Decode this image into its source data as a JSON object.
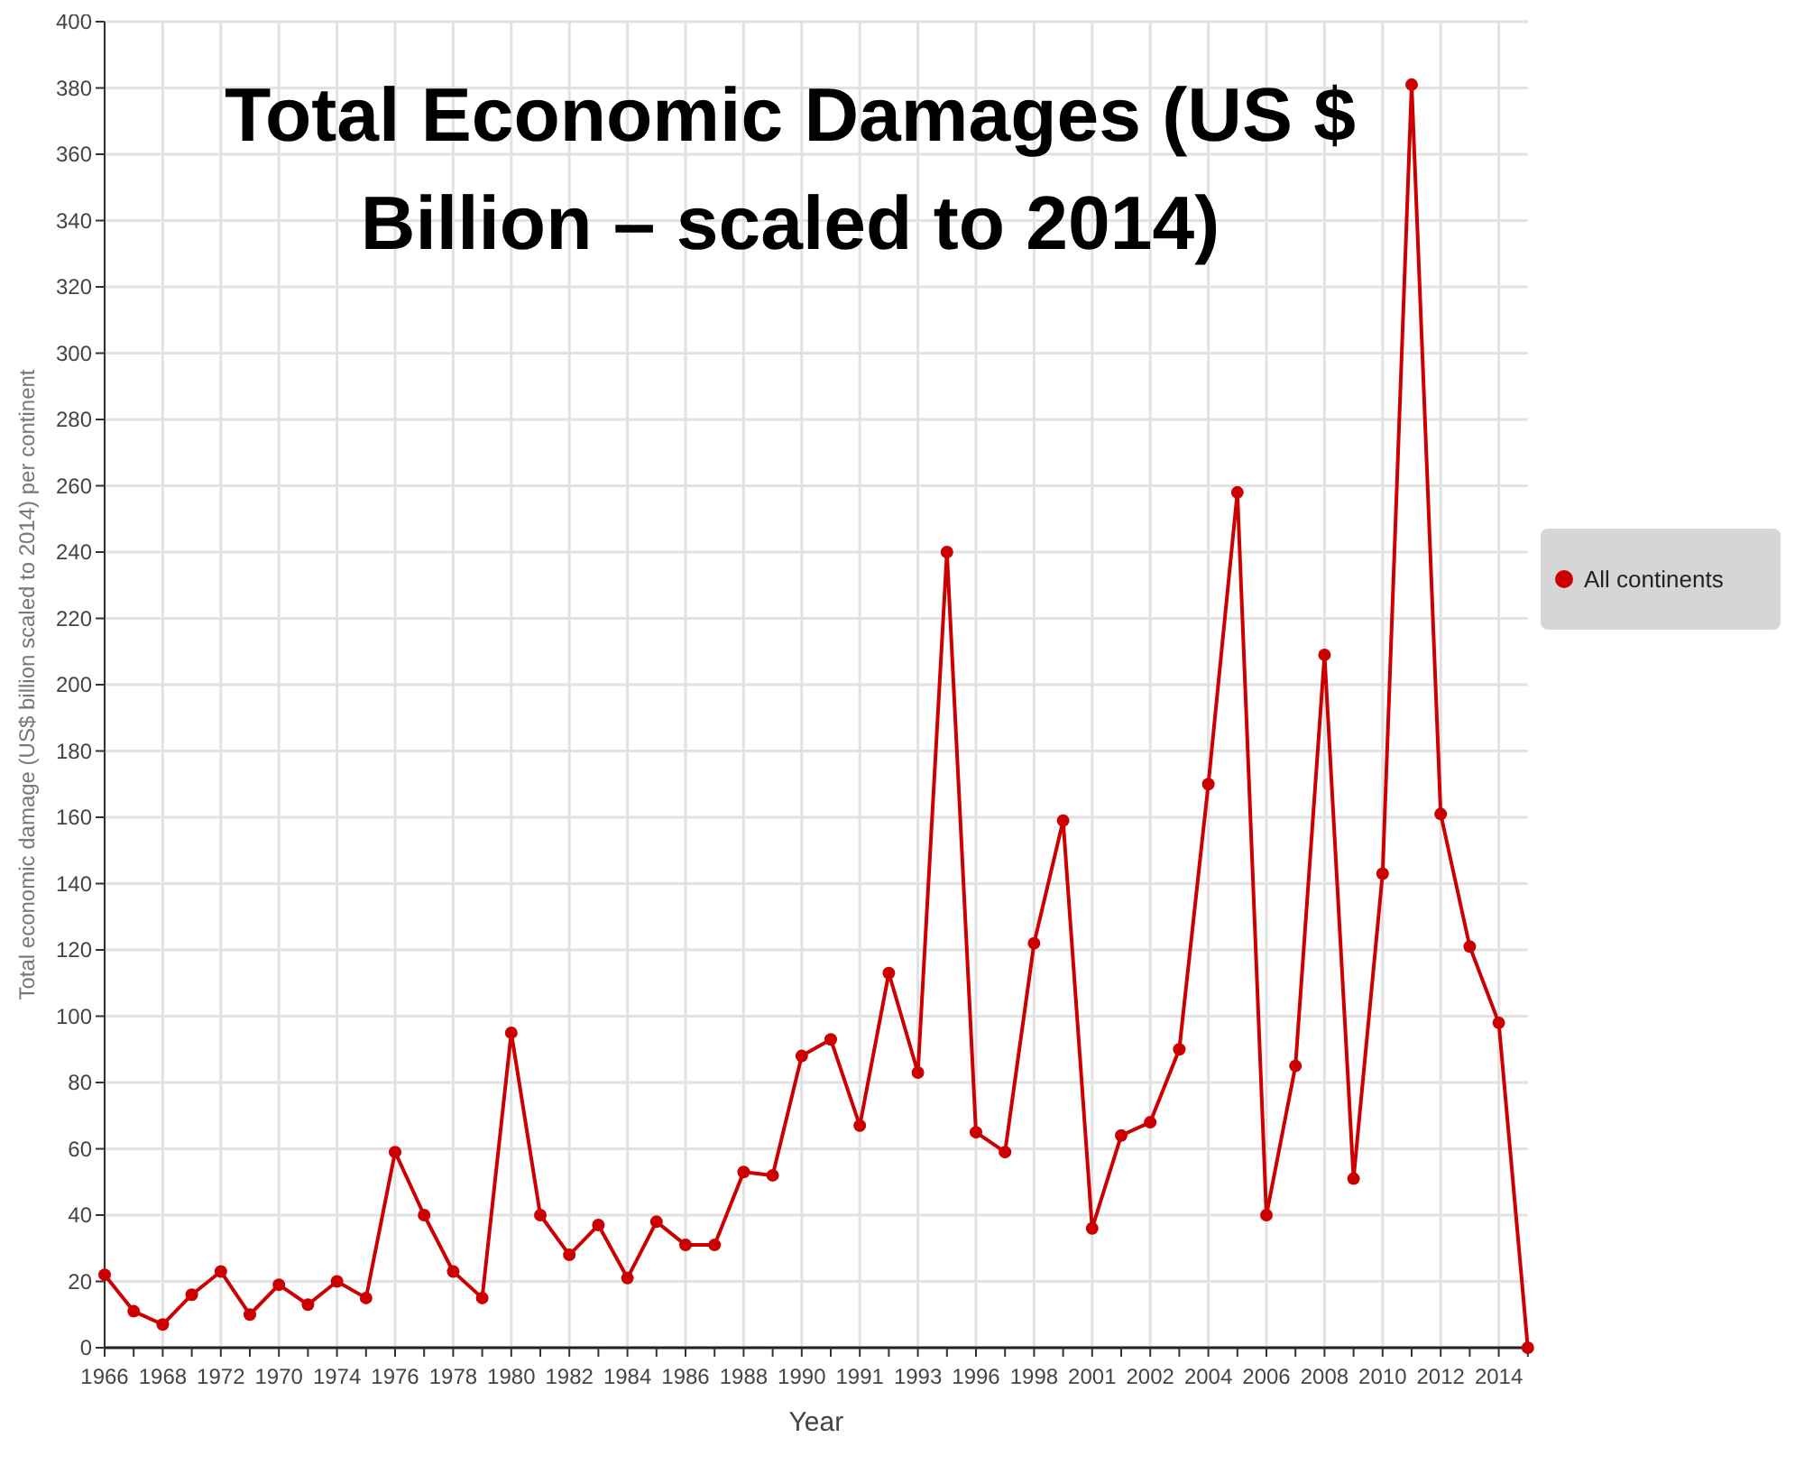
{
  "chart_data": {
    "type": "line",
    "title": "Total Economic Damages (US $ Billion – scaled to 2014)",
    "xlabel": "Year",
    "ylabel": "Total economic damage (US$ billion scaled to 2014) per continent",
    "categories": [
      "1966",
      null,
      "1968",
      null,
      "1972",
      null,
      "1970",
      null,
      "1974",
      null,
      "1976",
      null,
      "1978",
      null,
      "1980",
      null,
      "1982",
      null,
      "1984",
      null,
      "1986",
      null,
      "1988",
      null,
      "1990",
      null,
      "1991",
      null,
      "1993",
      null,
      "1996",
      null,
      "1998",
      null,
      "2001",
      null,
      "2002",
      null,
      "2004",
      null,
      "2006",
      null,
      "2008",
      null,
      "2010",
      null,
      "2012",
      null,
      "2014",
      null
    ],
    "series": [
      {
        "name": "All continents",
        "color": "#cc0000",
        "values": [
          22,
          11,
          7,
          16,
          23,
          10,
          19,
          13,
          20,
          15,
          59,
          40,
          23,
          15,
          95,
          40,
          28,
          37,
          21,
          38,
          31,
          31,
          53,
          52,
          88,
          93,
          67,
          113,
          83,
          240,
          65,
          59,
          122,
          159,
          36,
          64,
          68,
          90,
          170,
          258,
          40,
          85,
          209,
          51,
          143,
          381,
          161,
          121,
          98,
          0
        ]
      }
    ],
    "ylim": [
      0,
      400
    ],
    "yticks": [
      0,
      20,
      40,
      60,
      80,
      100,
      120,
      140,
      160,
      180,
      200,
      220,
      240,
      260,
      280,
      300,
      320,
      340,
      360,
      380,
      400
    ],
    "grid": true,
    "legend": "right",
    "marker": "circle",
    "line_style": "solid"
  }
}
